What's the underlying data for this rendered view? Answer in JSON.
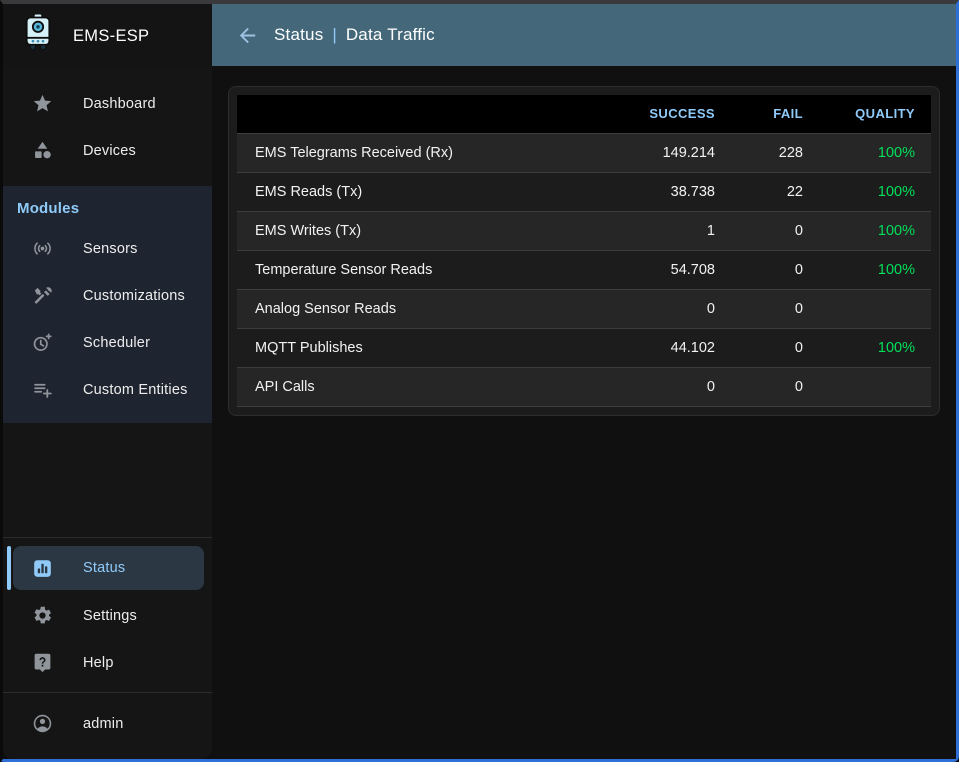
{
  "app": {
    "title": "EMS-ESP"
  },
  "header": {
    "back_icon": "arrow-back",
    "section": "Status",
    "separator": "|",
    "page": "Data Traffic"
  },
  "sidebar": {
    "items_top": [
      {
        "label": "Dashboard",
        "icon": "star"
      },
      {
        "label": "Devices",
        "icon": "category"
      }
    ],
    "modules": {
      "title": "Modules",
      "items": [
        {
          "label": "Sensors",
          "icon": "sensors"
        },
        {
          "label": "Customizations",
          "icon": "construction"
        },
        {
          "label": "Scheduler",
          "icon": "more-time"
        },
        {
          "label": "Custom Entities",
          "icon": "playlist-add"
        }
      ]
    },
    "items_bottom": [
      {
        "label": "Status",
        "icon": "analytics",
        "selected": true
      },
      {
        "label": "Settings",
        "icon": "gear"
      },
      {
        "label": "Help",
        "icon": "live-help"
      }
    ],
    "user": {
      "label": "admin",
      "icon": "account-circle"
    }
  },
  "table": {
    "columns": [
      "",
      "SUCCESS",
      "FAIL",
      "QUALITY"
    ],
    "rows": [
      {
        "label": "EMS Telegrams Received (Rx)",
        "success": "149.214",
        "fail": "228",
        "quality": "100%"
      },
      {
        "label": "EMS Reads (Tx)",
        "success": "38.738",
        "fail": "22",
        "quality": "100%"
      },
      {
        "label": "EMS Writes (Tx)",
        "success": "1",
        "fail": "0",
        "quality": "100%"
      },
      {
        "label": "Temperature Sensor Reads",
        "success": "54.708",
        "fail": "0",
        "quality": "100%"
      },
      {
        "label": "Analog Sensor Reads",
        "success": "0",
        "fail": "0",
        "quality": ""
      },
      {
        "label": "MQTT Publishes",
        "success": "44.102",
        "fail": "0",
        "quality": "100%"
      },
      {
        "label": "API Calls",
        "success": "0",
        "fail": "0",
        "quality": ""
      }
    ]
  },
  "colors": {
    "accent": "#90caf9",
    "appbar": "#44687a",
    "quality_good": "#00e05a",
    "selected_bg": "#2b3844"
  }
}
